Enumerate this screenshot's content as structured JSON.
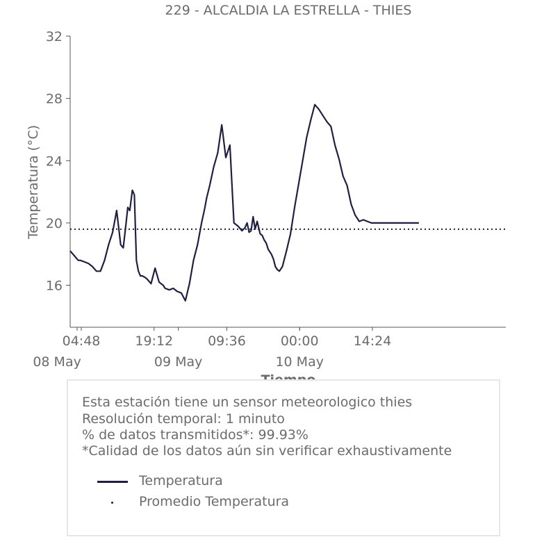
{
  "chart_data": {
    "type": "line",
    "title": "229 - ALCALDIA LA ESTRELLA - THIES",
    "xlabel": "Tiempo",
    "ylabel": "Temperatura (°C)",
    "ylim": [
      13.3,
      32
    ],
    "yticks": [
      16,
      20,
      24,
      28,
      32
    ],
    "x_units": "hours since 08 May 00:00",
    "xlim": [
      2.6,
      88.8
    ],
    "xticks": [
      {
        "x": 4.8,
        "label": "04:48"
      },
      {
        "x": 19.2,
        "label": "19:12"
      },
      {
        "x": 33.6,
        "label": "09:36"
      },
      {
        "x": 48.0,
        "label": "00:00"
      },
      {
        "x": 62.4,
        "label": "14:24"
      }
    ],
    "xticks_major": [
      {
        "x": 0,
        "label": "08 May"
      },
      {
        "x": 24,
        "label": "09 May"
      },
      {
        "x": 48,
        "label": "10 May"
      }
    ],
    "series": [
      {
        "name": "Temperatura",
        "color": "#1f1f45",
        "style": "solid",
        "x": [
          2.6,
          3.4,
          4.2,
          4.6,
          5.4,
          6.2,
          7.0,
          7.8,
          8.6,
          9.4,
          10.2,
          11.0,
          11.8,
          12.6,
          13.1,
          13.6,
          14.0,
          14.4,
          14.9,
          15.3,
          15.7,
          16.1,
          16.5,
          16.9,
          17.4,
          17.8,
          18.6,
          19.4,
          20.2,
          20.6,
          21.0,
          21.4,
          22.2,
          23.0,
          23.8,
          24.6,
          25.4,
          26.2,
          27.0,
          27.8,
          28.6,
          29.2,
          29.6,
          30.2,
          31.0,
          31.8,
          32.6,
          33.4,
          34.2,
          35.0,
          35.8,
          36.6,
          37.2,
          37.6,
          38.0,
          38.4,
          38.8,
          39.2,
          39.6,
          40.2,
          40.6,
          41.0,
          41.4,
          41.8,
          42.4,
          42.8,
          43.2,
          43.6,
          44.0,
          44.6,
          45.4,
          46.2,
          47.0,
          47.8,
          48.6,
          49.4,
          50.2,
          51.0,
          51.8,
          52.6,
          53.4,
          54.2,
          55.0,
          55.8,
          56.6,
          57.4,
          58.2,
          59.0,
          59.8,
          60.6,
          61.4,
          62.2,
          62.8,
          63.4,
          64.0,
          64.6,
          65.2,
          65.8,
          66.6,
          67.4,
          68.2,
          69.0,
          69.8,
          70.6,
          71.2,
          71.6
        ],
        "y": [
          18.2,
          17.9,
          17.6,
          17.6,
          17.5,
          17.4,
          17.2,
          16.9,
          16.9,
          17.6,
          18.6,
          19.4,
          20.8,
          18.6,
          18.4,
          19.8,
          21.0,
          20.8,
          22.1,
          21.8,
          17.6,
          16.9,
          16.6,
          16.6,
          16.5,
          16.4,
          16.1,
          17.1,
          16.2,
          16.1,
          16.0,
          15.8,
          15.7,
          15.8,
          15.6,
          15.5,
          15.0,
          16.1,
          17.6,
          18.6,
          20.0,
          20.9,
          21.6,
          22.4,
          23.6,
          24.5,
          26.3,
          24.2,
          25.0,
          20.0,
          19.8,
          19.5,
          19.7,
          20.0,
          19.4,
          19.5,
          20.4,
          19.6,
          20.1,
          19.3,
          19.2,
          18.9,
          18.7,
          18.3,
          18.0,
          17.7,
          17.2,
          17.0,
          16.9,
          17.2,
          18.2,
          19.3,
          21.0,
          22.5,
          24.0,
          25.5,
          26.6,
          27.6,
          27.3,
          26.9,
          26.5,
          26.2,
          25.0,
          24.1,
          23.0,
          22.4,
          21.2,
          20.5,
          20.1,
          20.2,
          20.1,
          20.0,
          20.0,
          20.0,
          20.0,
          20.0,
          20.0,
          20.0,
          20.0,
          20.0,
          20.0,
          20.0,
          20.0,
          20.0,
          20.0,
          20.0
        ]
      },
      {
        "name": "Promedio Temperatura",
        "color": "#1f1f45",
        "style": "dotted",
        "value": 19.6
      }
    ],
    "grid": false,
    "legend_location": "inside info box, below text"
  },
  "info": {
    "lines": [
      "Esta estación tiene un sensor meteorologico thies",
      "Resolución temporal: 1 minuto",
      "% de datos transmitidos*: 99.93%",
      "*Calidad de los datos aún sin verificar exhaustivamente"
    ],
    "legend": [
      {
        "label": "Temperatura"
      },
      {
        "label": "Promedio Temperatura"
      }
    ]
  }
}
